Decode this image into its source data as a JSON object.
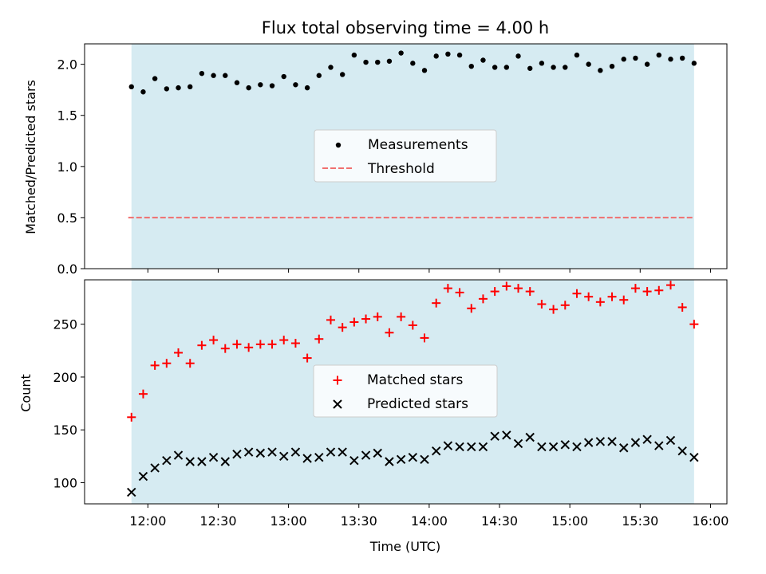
{
  "chart_data": [
    {
      "type": "scatter",
      "title": "Flux total observing time = 4.00 h",
      "xlabel": "",
      "ylabel": "Matched/Predicted stars",
      "xlim_minutes": [
        693,
        967
      ],
      "ylim": [
        0,
        2.2
      ],
      "yticks": [
        0.0,
        0.5,
        1.0,
        1.5,
        2.0
      ],
      "ytick_labels": [
        "0.0",
        "0.5",
        "1.0",
        "1.5",
        "2.0"
      ],
      "shaded_span_minutes": [
        713,
        953
      ],
      "shaded_color": "#add8e6",
      "legend": {
        "location": "center",
        "entries": [
          "Measurements",
          "Threshold"
        ]
      },
      "threshold": {
        "name": "Threshold",
        "value": 0.5,
        "color": "#f07070"
      },
      "series": [
        {
          "name": "Measurements",
          "color": "#000000",
          "x_minutes": [
            713,
            718,
            723,
            728,
            733,
            738,
            743,
            748,
            753,
            758,
            763,
            768,
            773,
            778,
            783,
            788,
            793,
            798,
            803,
            808,
            813,
            818,
            823,
            828,
            833,
            838,
            843,
            848,
            853,
            858,
            863,
            868,
            873,
            878,
            883,
            888,
            893,
            898,
            903,
            908,
            913,
            918,
            923,
            928,
            933,
            938,
            943,
            948,
            953
          ],
          "values": [
            1.78,
            1.73,
            1.86,
            1.76,
            1.77,
            1.78,
            1.91,
            1.89,
            1.89,
            1.82,
            1.77,
            1.8,
            1.79,
            1.88,
            1.8,
            1.77,
            1.89,
            1.97,
            1.9,
            2.09,
            2.02,
            2.02,
            2.03,
            2.11,
            2.01,
            1.94,
            2.08,
            2.1,
            2.09,
            1.98,
            2.04,
            1.97,
            1.97,
            2.08,
            1.96,
            2.01,
            1.97,
            1.97,
            2.09,
            2.0,
            1.94,
            1.98,
            2.05,
            2.06,
            2.0,
            2.09,
            2.05,
            2.06,
            2.01
          ]
        }
      ]
    },
    {
      "type": "scatter",
      "title": "",
      "xlabel": "Time (UTC)",
      "ylabel": "Count",
      "xlim_minutes": [
        693,
        967
      ],
      "ylim": [
        80,
        292
      ],
      "yticks": [
        100,
        150,
        200,
        250
      ],
      "ytick_labels": [
        "100",
        "150",
        "200",
        "250"
      ],
      "xticks_minutes": [
        720,
        750,
        780,
        810,
        840,
        870,
        900,
        930,
        960
      ],
      "xtick_labels": [
        "12:00",
        "12:30",
        "13:00",
        "13:30",
        "14:00",
        "14:30",
        "15:00",
        "15:30",
        "16:00"
      ],
      "shaded_span_minutes": [
        713,
        953
      ],
      "shaded_color": "#add8e6",
      "legend": {
        "location": "center",
        "entries": [
          "Matched stars",
          "Predicted stars"
        ]
      },
      "series": [
        {
          "name": "Matched stars",
          "marker": "+",
          "color": "#ff0000",
          "x_minutes": [
            713,
            718,
            723,
            728,
            733,
            738,
            743,
            748,
            753,
            758,
            763,
            768,
            773,
            778,
            783,
            788,
            793,
            798,
            803,
            808,
            813,
            818,
            823,
            828,
            833,
            838,
            843,
            848,
            853,
            858,
            863,
            868,
            873,
            878,
            883,
            888,
            893,
            898,
            903,
            908,
            913,
            918,
            923,
            928,
            933,
            938,
            943,
            948,
            953
          ],
          "values": [
            162,
            184,
            211,
            213,
            223,
            213,
            230,
            235,
            227,
            231,
            228,
            231,
            231,
            235,
            232,
            218,
            236,
            254,
            247,
            252,
            255,
            257,
            242,
            257,
            249,
            237,
            270,
            284,
            280,
            265,
            274,
            281,
            286,
            284,
            281,
            269,
            264,
            268,
            279,
            276,
            271,
            276,
            273,
            284,
            281,
            282,
            287,
            266,
            250
          ]
        },
        {
          "name": "Predicted stars",
          "marker": "x",
          "color": "#000000",
          "x_minutes": [
            713,
            718,
            723,
            728,
            733,
            738,
            743,
            748,
            753,
            758,
            763,
            768,
            773,
            778,
            783,
            788,
            793,
            798,
            803,
            808,
            813,
            818,
            823,
            828,
            833,
            838,
            843,
            848,
            853,
            858,
            863,
            868,
            873,
            878,
            883,
            888,
            893,
            898,
            903,
            908,
            913,
            918,
            923,
            928,
            933,
            938,
            943,
            948,
            953
          ],
          "values": [
            91,
            106,
            114,
            121,
            126,
            120,
            120,
            124,
            120,
            127,
            129,
            128,
            129,
            125,
            129,
            123,
            124,
            129,
            129,
            121,
            126,
            128,
            120,
            122,
            124,
            122,
            130,
            135,
            134,
            134,
            134,
            144,
            145,
            137,
            143,
            134,
            134,
            136,
            134,
            138,
            139,
            139,
            133,
            138,
            141,
            135,
            140,
            130,
            124
          ]
        }
      ]
    }
  ]
}
